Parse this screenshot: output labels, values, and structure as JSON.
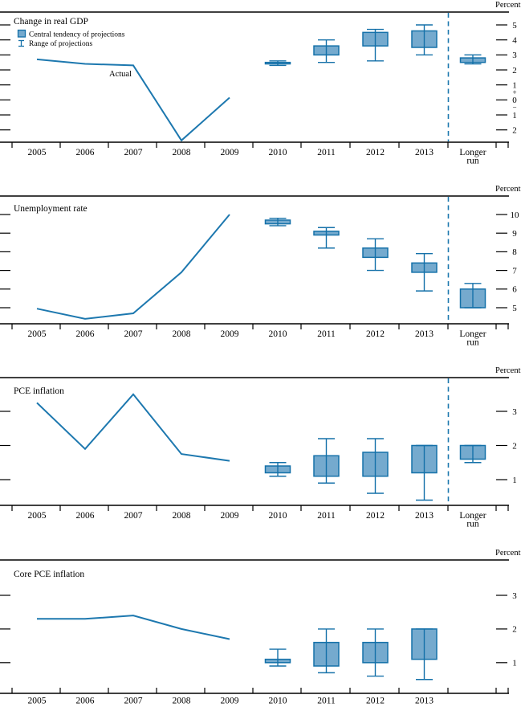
{
  "figure": {
    "unit_label": "Percent",
    "actual_label": "Actual",
    "longer_run_label_line1": "Longer",
    "longer_run_label_line2": "run",
    "legend": {
      "central_tendency_label": "Central tendency of projections",
      "range_label": "Range of projections"
    },
    "colors": {
      "actual_line": "#1d78af",
      "box_fill": "#75aace",
      "box_stroke": "#1571a9",
      "separator": "#1d78af",
      "axis": "#000000"
    }
  },
  "chart_data": [
    {
      "type": "line+box-whisker",
      "title": "Change in real GDP",
      "ylabel": "Percent",
      "y_ticks": [
        5,
        4,
        3,
        2,
        1,
        0,
        -1,
        -2
      ],
      "y_tick_labels": [
        "5",
        "4",
        "3",
        "2",
        "1",
        "0",
        "1",
        "2"
      ],
      "sign_labels": {
        "positive": "+",
        "negative": "−"
      },
      "x_categories": [
        "2005",
        "2006",
        "2007",
        "2008",
        "2009",
        "2010",
        "2011",
        "2012",
        "2013",
        "Longer run"
      ],
      "actual": {
        "years": [
          2005,
          2006,
          2007,
          2008,
          2009
        ],
        "values": [
          2.7,
          2.4,
          2.3,
          -2.7,
          0.15
        ],
        "label": "Actual"
      },
      "projections": [
        {
          "period": "2010",
          "central_tendency": [
            2.4,
            2.5
          ],
          "range": [
            2.3,
            2.6
          ]
        },
        {
          "period": "2011",
          "central_tendency": [
            3.0,
            3.6
          ],
          "range": [
            2.5,
            4.0
          ]
        },
        {
          "period": "2012",
          "central_tendency": [
            3.6,
            4.5
          ],
          "range": [
            2.6,
            4.7
          ]
        },
        {
          "period": "2013",
          "central_tendency": [
            3.5,
            4.6
          ],
          "range": [
            3.0,
            5.0
          ]
        },
        {
          "period": "Longer run",
          "central_tendency": [
            2.5,
            2.8
          ],
          "range": [
            2.4,
            3.0
          ]
        }
      ],
      "show_legend": true,
      "show_actual_label": true,
      "dashed_separator": true
    },
    {
      "type": "line+box-whisker",
      "title": "Unemployment rate",
      "ylabel": "Percent",
      "y_ticks": [
        10,
        9,
        8,
        7,
        6,
        5
      ],
      "y_tick_labels": [
        "10",
        "9",
        "8",
        "7",
        "6",
        "5"
      ],
      "x_categories": [
        "2005",
        "2006",
        "2007",
        "2008",
        "2009",
        "2010",
        "2011",
        "2012",
        "2013",
        "Longer run"
      ],
      "actual": {
        "years": [
          2005,
          2006,
          2007,
          2008,
          2009
        ],
        "values": [
          4.95,
          4.4,
          4.7,
          6.9,
          10.0
        ]
      },
      "projections": [
        {
          "period": "2010",
          "central_tendency": [
            9.5,
            9.7
          ],
          "range": [
            9.4,
            9.8
          ]
        },
        {
          "period": "2011",
          "central_tendency": [
            8.9,
            9.1
          ],
          "range": [
            8.2,
            9.3
          ]
        },
        {
          "period": "2012",
          "central_tendency": [
            7.7,
            8.2
          ],
          "range": [
            7.0,
            8.7
          ]
        },
        {
          "period": "2013",
          "central_tendency": [
            6.9,
            7.4
          ],
          "range": [
            5.9,
            7.9
          ]
        },
        {
          "period": "Longer run",
          "central_tendency": [
            5.0,
            6.0
          ],
          "range": [
            5.0,
            6.3
          ]
        }
      ],
      "show_legend": false,
      "show_actual_label": false,
      "dashed_separator": true
    },
    {
      "type": "line+box-whisker",
      "title": "PCE inflation",
      "ylabel": "Percent",
      "y_ticks": [
        3,
        2,
        1
      ],
      "y_tick_labels": [
        "3",
        "2",
        "1"
      ],
      "x_categories": [
        "2005",
        "2006",
        "2007",
        "2008",
        "2009",
        "2010",
        "2011",
        "2012",
        "2013",
        "Longer run"
      ],
      "actual": {
        "years": [
          2005,
          2006,
          2007,
          2008,
          2009
        ],
        "values": [
          3.25,
          1.9,
          3.5,
          1.75,
          1.55
        ]
      },
      "projections": [
        {
          "period": "2010",
          "central_tendency": [
            1.2,
            1.4
          ],
          "range": [
            1.1,
            1.5
          ]
        },
        {
          "period": "2011",
          "central_tendency": [
            1.1,
            1.7
          ],
          "range": [
            0.9,
            2.2
          ]
        },
        {
          "period": "2012",
          "central_tendency": [
            1.1,
            1.8
          ],
          "range": [
            0.6,
            2.2
          ]
        },
        {
          "period": "2013",
          "central_tendency": [
            1.2,
            2.0
          ],
          "range": [
            0.4,
            2.0
          ]
        },
        {
          "period": "Longer run",
          "central_tendency": [
            1.6,
            2.0
          ],
          "range": [
            1.5,
            2.0
          ]
        }
      ],
      "show_legend": false,
      "show_actual_label": false,
      "dashed_separator": true
    },
    {
      "type": "line+box-whisker",
      "title": "Core PCE inflation",
      "ylabel": "Percent",
      "y_ticks": [
        3,
        2,
        1
      ],
      "y_tick_labels": [
        "3",
        "2",
        "1"
      ],
      "x_categories": [
        "2005",
        "2006",
        "2007",
        "2008",
        "2009",
        "2010",
        "2011",
        "2012",
        "2013"
      ],
      "actual": {
        "years": [
          2005,
          2006,
          2007,
          2008,
          2009
        ],
        "values": [
          2.3,
          2.3,
          2.4,
          2.0,
          1.7
        ]
      },
      "projections": [
        {
          "period": "2010",
          "central_tendency": [
            1.0,
            1.1
          ],
          "range": [
            0.9,
            1.4
          ]
        },
        {
          "period": "2011",
          "central_tendency": [
            0.9,
            1.6
          ],
          "range": [
            0.7,
            2.0
          ]
        },
        {
          "period": "2012",
          "central_tendency": [
            1.0,
            1.6
          ],
          "range": [
            0.6,
            2.0
          ]
        },
        {
          "period": "2013",
          "central_tendency": [
            1.1,
            2.0
          ],
          "range": [
            0.5,
            2.0
          ]
        }
      ],
      "show_legend": false,
      "show_actual_label": false,
      "dashed_separator": false
    }
  ]
}
